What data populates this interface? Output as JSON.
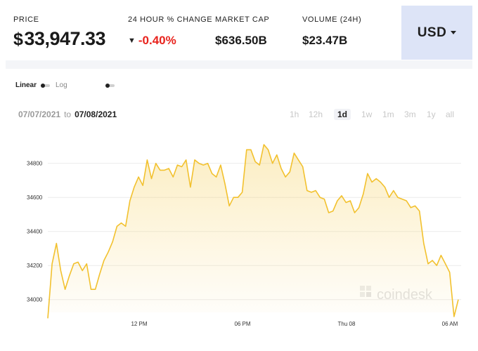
{
  "stats": {
    "price_label": "PRICE",
    "price_currency": "$",
    "price_value": "33,947.33",
    "change_label": "24 HOUR % CHANGE",
    "change_value": "-0.40%",
    "change_color": "#e8231d",
    "market_cap_label": "MARKET CAP",
    "market_cap_value": "$636.50B",
    "volume_label": "VOLUME (24H)",
    "volume_value": "$23.47B"
  },
  "currency": {
    "selected": "USD"
  },
  "scale": {
    "linear_label": "Linear",
    "log_label": "Log"
  },
  "range": {
    "from": "07/07/2021",
    "to_word": "to",
    "to": "07/08/2021"
  },
  "timeframes": [
    "1h",
    "12h",
    "1d",
    "1w",
    "1m",
    "3m",
    "1y",
    "all"
  ],
  "active_timeframe": "1d",
  "watermark": "coindesk",
  "chart_data": {
    "type": "area",
    "color": "#f2c12e",
    "x_ticks": [
      "12 PM",
      "06 PM",
      "Thu 08",
      "06 AM"
    ],
    "y_ticks": [
      34000,
      34200,
      34400,
      34600,
      34800
    ],
    "ylim": [
      33940,
      34920
    ],
    "x_hours_from_start": [
      0,
      18.5,
      30
    ],
    "x_start_clock_hour": 6.5,
    "values": [
      33890,
      34210,
      34330,
      34170,
      34060,
      34140,
      34210,
      34220,
      34170,
      34210,
      34060,
      34060,
      34150,
      34230,
      34280,
      34340,
      34430,
      34450,
      34430,
      34580,
      34660,
      34720,
      34670,
      34820,
      34710,
      34800,
      34760,
      34760,
      34770,
      34720,
      34790,
      34780,
      34820,
      34660,
      34820,
      34800,
      34790,
      34800,
      34740,
      34720,
      34790,
      34680,
      34550,
      34600,
      34600,
      34630,
      34880,
      34880,
      34810,
      34790,
      34910,
      34880,
      34800,
      34850,
      34770,
      34720,
      34750,
      34860,
      34820,
      34780,
      34640,
      34630,
      34640,
      34600,
      34590,
      34510,
      34520,
      34580,
      34610,
      34570,
      34580,
      34510,
      34540,
      34620,
      34740,
      34690,
      34710,
      34690,
      34660,
      34600,
      34640,
      34600,
      34590,
      34580,
      34540,
      34550,
      34520,
      34330,
      34210,
      34230,
      34200,
      34260,
      34210,
      34160,
      33900,
      34000
    ]
  }
}
